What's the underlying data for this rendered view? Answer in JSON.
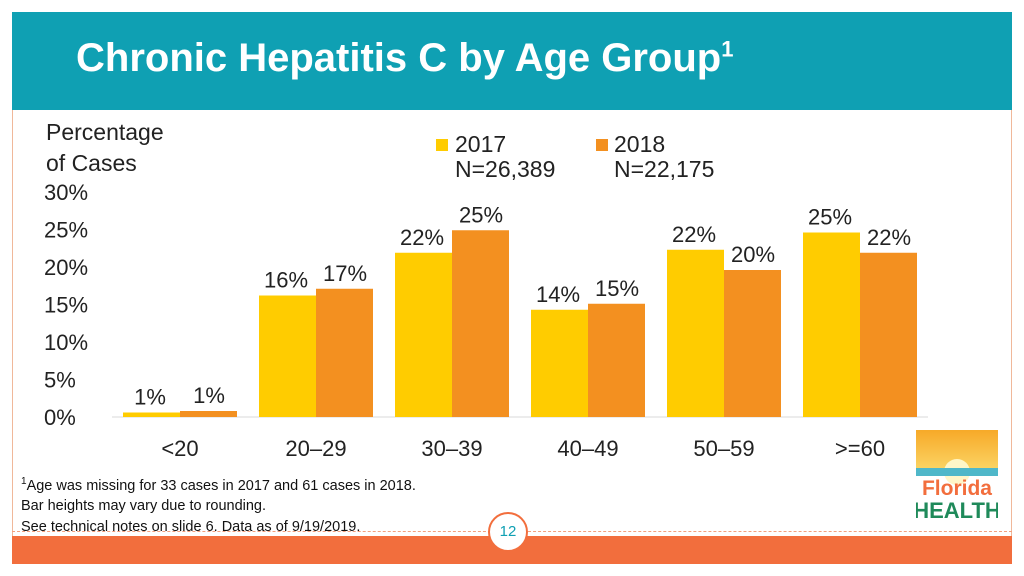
{
  "title": "Chronic Hepatitis C by Age Group",
  "title_superscript": "1",
  "colors": {
    "header": "#0fa0b3",
    "series_2017": "#ffcc00",
    "series_2018": "#f39020",
    "footer": "#f26e3d"
  },
  "chart_data": {
    "type": "bar",
    "ylabel_line1": "Percentage",
    "ylabel_line2": "of Cases",
    "ylim": [
      0,
      30
    ],
    "yticks": [
      {
        "value": 0,
        "label": "0%"
      },
      {
        "value": 5,
        "label": "5%"
      },
      {
        "value": 10,
        "label": "10%"
      },
      {
        "value": 15,
        "label": "15%"
      },
      {
        "value": 20,
        "label": "20%"
      },
      {
        "value": 25,
        "label": "25%"
      },
      {
        "value": 30,
        "label": "30%"
      }
    ],
    "categories": [
      "<20",
      "20–29",
      "30–39",
      "40–49",
      "50–59",
      ">=60"
    ],
    "series": [
      {
        "name": "2017",
        "n_label": "N=26,389",
        "values": [
          0.6,
          16.2,
          21.9,
          14.3,
          22.3,
          24.6
        ],
        "labels": [
          "1%",
          "16%",
          "22%",
          "14%",
          "22%",
          "25%"
        ]
      },
      {
        "name": "2018",
        "n_label": "N=22,175",
        "values": [
          0.8,
          17.1,
          24.9,
          15.1,
          19.6,
          21.9
        ],
        "labels": [
          "1%",
          "17%",
          "25%",
          "15%",
          "20%",
          "22%"
        ]
      }
    ],
    "legend_position": "top-right"
  },
  "notes": {
    "marker": "1",
    "line1": "Age was missing for 33 cases in 2017 and 61 cases in 2018.",
    "line2": "Bar heights may vary due to rounding.",
    "line3": "See technical notes on slide 6. Data as of 9/19/2019."
  },
  "page_number": "12",
  "logo": {
    "line1": "Florida",
    "line2": "HEALTH"
  }
}
